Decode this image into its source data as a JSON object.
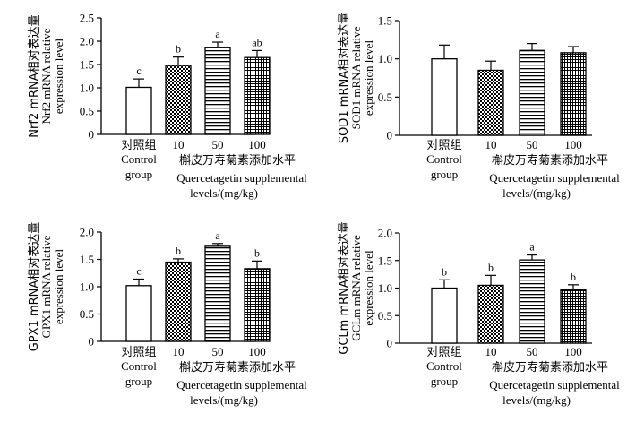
{
  "chart_data": [
    {
      "type": "bar",
      "ylabel_cn": "Nrf2 mRNA相对表达量",
      "ylabel_en1": "Nrf2 mRNA relative",
      "ylabel_en2": "expression level",
      "ylim": [
        0,
        2.5
      ],
      "yticks": [
        "0",
        "0.5",
        "1.0",
        "1.5",
        "2.0",
        "2.5"
      ],
      "categories": [
        "对照组",
        "10",
        "50",
        "100"
      ],
      "values": [
        1.01,
        1.48,
        1.86,
        1.65
      ],
      "errors": [
        0.18,
        0.18,
        0.12,
        0.15
      ],
      "letters": [
        "c",
        "b",
        "a",
        "ab"
      ],
      "patterns": [
        "plain",
        "checker",
        "hlines",
        "crosshatch"
      ],
      "control_en1": "Control",
      "control_en2": "group",
      "x_cn": "槲皮万寿菊素添加水平",
      "x_en1": "Quercetagetin supplemental",
      "x_en2": "levels/(mg/kg)"
    },
    {
      "type": "bar",
      "ylabel_cn": "SOD1 mRNA相对表达量",
      "ylabel_en1": "SOD1 mRNA relative",
      "ylabel_en2": "expression level",
      "ylim": [
        0,
        1.5
      ],
      "yticks": [
        "0",
        "0.5",
        "1.0",
        "1.5"
      ],
      "categories": [
        "对照组",
        "10",
        "50",
        "100"
      ],
      "values": [
        1.0,
        0.85,
        1.11,
        1.08
      ],
      "errors": [
        0.18,
        0.12,
        0.09,
        0.08
      ],
      "letters": [
        "",
        "",
        "",
        ""
      ],
      "patterns": [
        "plain",
        "checker",
        "hlines",
        "crosshatch"
      ],
      "control_en1": "Control",
      "control_en2": "group",
      "x_cn": "槲皮万寿菊素添加水平",
      "x_en1": "Quercetagetin supplemental",
      "x_en2": "levels/(mg/kg)"
    },
    {
      "type": "bar",
      "ylabel_cn": "GPX1 mRNA相对表达量",
      "ylabel_en1": "GPX1 mRNA relative",
      "ylabel_en2": "expression level",
      "ylim": [
        0,
        2.0
      ],
      "yticks": [
        "0",
        "0.5",
        "1.0",
        "1.5",
        "2.0"
      ],
      "categories": [
        "对照组",
        "10",
        "50",
        "100"
      ],
      "values": [
        1.02,
        1.45,
        1.74,
        1.33
      ],
      "errors": [
        0.12,
        0.06,
        0.05,
        0.14
      ],
      "letters": [
        "c",
        "b",
        "a",
        "b"
      ],
      "patterns": [
        "plain",
        "checker",
        "hlines",
        "crosshatch"
      ],
      "control_en1": "Control",
      "control_en2": "group",
      "x_cn": "槲皮万寿菊素添加水平",
      "x_en1": "Quercetagetin supplemental",
      "x_en2": "levels/(mg/kg)"
    },
    {
      "type": "bar",
      "ylabel_cn": "GCLm mRNA相对表达量",
      "ylabel_en1": "GCLm mRNA relative",
      "ylabel_en2": "expression level",
      "ylim": [
        0,
        2.0
      ],
      "yticks": [
        "0",
        "0.5",
        "1.0",
        "1.5",
        "2.0"
      ],
      "categories": [
        "对照组",
        "10",
        "50",
        "100"
      ],
      "values": [
        1.0,
        1.05,
        1.51,
        0.97
      ],
      "errors": [
        0.15,
        0.18,
        0.09,
        0.09
      ],
      "letters": [
        "b",
        "b",
        "a",
        "b"
      ],
      "patterns": [
        "plain",
        "checker",
        "hlines",
        "crosshatch"
      ],
      "control_en1": "Control",
      "control_en2": "group",
      "x_cn": "槲皮万寿菊素添加水平",
      "x_en1": "Quercetagetin supplemental",
      "x_en2": "levels/(mg/kg)"
    }
  ]
}
